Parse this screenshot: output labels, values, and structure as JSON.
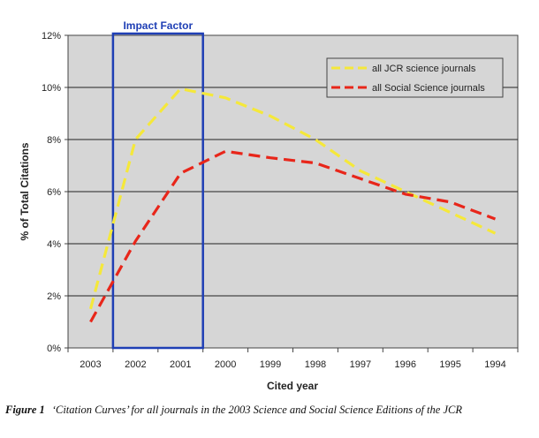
{
  "chart_data": {
    "type": "line",
    "title": "",
    "xlabel": "Cited year",
    "ylabel": "% of Total Citations",
    "categories": [
      "2003",
      "2002",
      "2001",
      "2000",
      "1999",
      "1998",
      "1997",
      "1996",
      "1995",
      "1994"
    ],
    "ylim": [
      0,
      12
    ],
    "yticks": [
      "0%",
      "2%",
      "4%",
      "6%",
      "8%",
      "10%",
      "12%"
    ],
    "grid": true,
    "legend_position": "top-right",
    "series": [
      {
        "name": "all JCR science journals",
        "color": "#f5e83a",
        "values": [
          1.5,
          8.0,
          9.95,
          9.6,
          8.9,
          8.0,
          6.8,
          6.0,
          5.2,
          4.4
        ]
      },
      {
        "name": "all Social Science journals",
        "color": "#e8261a",
        "values": [
          1.0,
          4.1,
          6.7,
          7.55,
          7.3,
          7.1,
          6.5,
          5.9,
          5.6,
          4.95
        ]
      }
    ],
    "annotation": {
      "label": "Impact Factor",
      "from": "2002",
      "to": "2001",
      "color": "#1f3fb5"
    }
  },
  "caption": {
    "figure_label": "Figure 1",
    "text": "‘Citation Curves’ for all journals in the 2003 Science and Social Science Editions of the JCR"
  }
}
